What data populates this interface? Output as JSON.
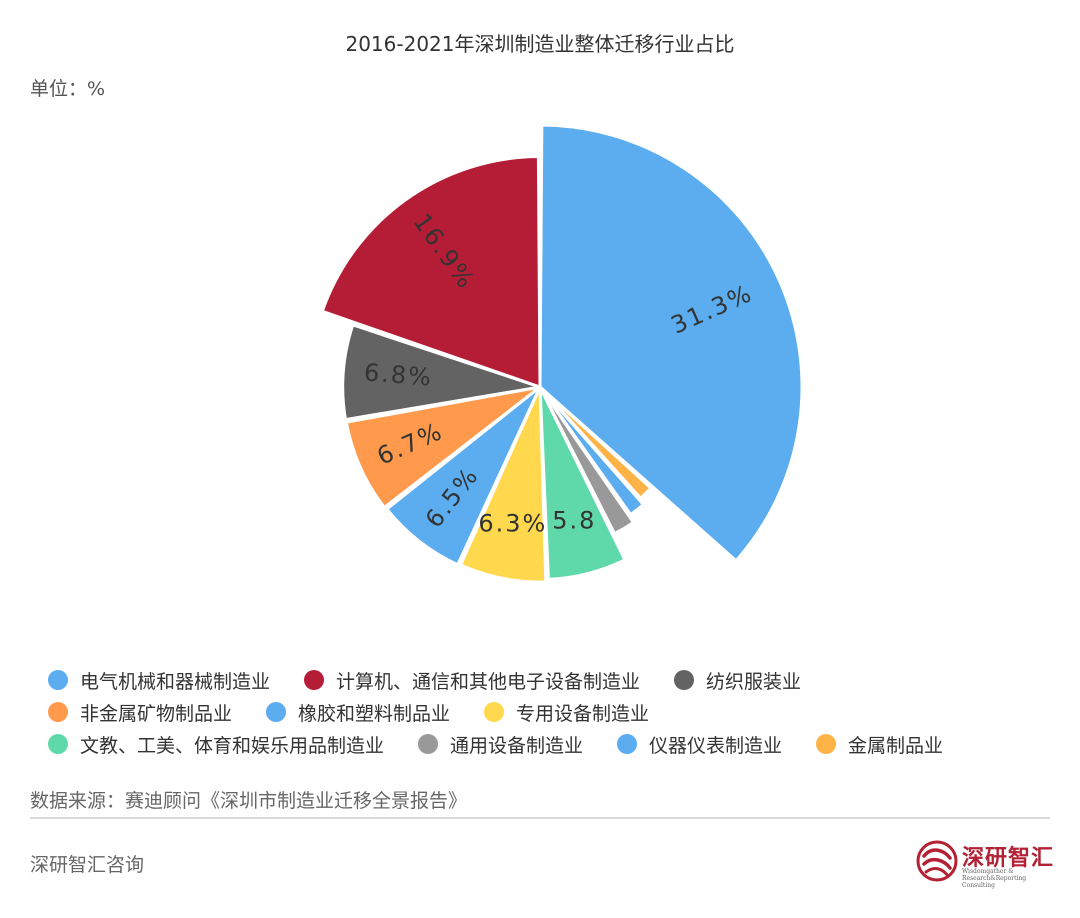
{
  "chart_data": {
    "type": "pie",
    "title": "2016-2021年深圳制造业整体迁移行业占比",
    "unit_label": "单位：%",
    "slices": [
      {
        "name": "电气机械和器械制造业",
        "value": 31.3,
        "label": "31.3%",
        "color": "#5badf0"
      },
      {
        "name": "金属制品业",
        "value": 1.5,
        "label": "",
        "color": "#ffb347"
      },
      {
        "name": "仪器仪表制造业",
        "value": 1.6,
        "label": "",
        "color": "#5badf0"
      },
      {
        "name": "通用设备制造业",
        "value": 2.0,
        "label": "",
        "color": "#999999"
      },
      {
        "name": "文教、工美、体育和娱乐用品制造业",
        "value": 5.8,
        "label": "5.8",
        "color": "#5fd8aa"
      },
      {
        "name": "专用设备制造业",
        "value": 6.3,
        "label": "6.3%",
        "color": "#ffd84d"
      },
      {
        "name": "橡胶和塑料制品业",
        "value": 6.5,
        "label": "6.5%",
        "color": "#5badf0"
      },
      {
        "name": "非金属矿物制品业",
        "value": 6.7,
        "label": "6.7%",
        "color": "#ff9a4d"
      },
      {
        "name": "纺织服装业",
        "value": 6.8,
        "label": "6.8%",
        "color": "#636363"
      },
      {
        "name": "计算机、通信和其他电子设备制造业",
        "value": 16.9,
        "label": "16.9%",
        "color": "#b51c35"
      }
    ]
  },
  "legend": {
    "rows": [
      [
        {
          "label": "电气机械和器械制造业",
          "color": "#5badf0"
        },
        {
          "label": "计算机、通信和其他电子设备制造业",
          "color": "#b51c35"
        },
        {
          "label": "纺织服装业",
          "color": "#636363"
        }
      ],
      [
        {
          "label": "非金属矿物制品业",
          "color": "#ff9a4d"
        },
        {
          "label": "橡胶和塑料制品业",
          "color": "#5badf0"
        },
        {
          "label": "专用设备制造业",
          "color": "#ffd84d"
        }
      ],
      [
        {
          "label": "文教、工美、体育和娱乐用品制造业",
          "color": "#5fd8aa"
        },
        {
          "label": "通用设备制造业",
          "color": "#999999"
        },
        {
          "label": "仪器仪表制造业",
          "color": "#5badf0"
        },
        {
          "label": "金属制品业",
          "color": "#ffb347"
        }
      ]
    ]
  },
  "source": "数据来源：赛迪顾问《深圳市制造业迁移全景报告》",
  "footer_brand": "深研智汇咨询",
  "logo": {
    "name": "深研智汇",
    "tagline": "Wisdomgather & Research&Reporting Consulting",
    "color": "#b22234"
  }
}
